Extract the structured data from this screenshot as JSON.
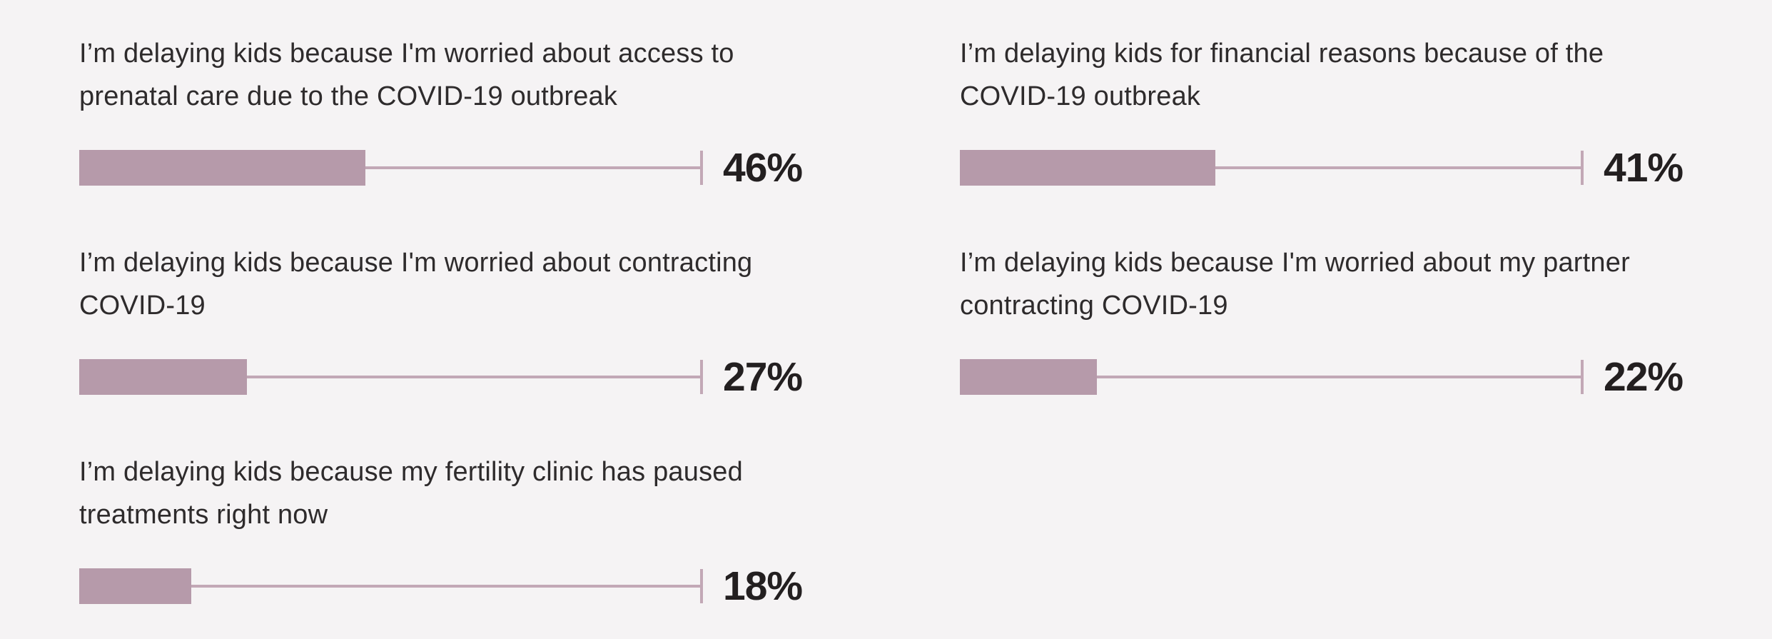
{
  "page": {
    "background_color": "#f5f3f4",
    "bar_fill_color": "#b69aaa",
    "track_line_color": "#c2a8b6",
    "label_color": "#2e2b2c",
    "value_color": "#231f20"
  },
  "chart_data": {
    "type": "bar",
    "orientation": "horizontal",
    "unit": "percent",
    "xlim": [
      0,
      100
    ],
    "grid": false,
    "legend": false,
    "layout": "two-column, end tick marks the 100% track end, bold value label right of tick",
    "categories": [
      "I’m delaying kids because I'm worried about access to prenatal care due to the COVID-19 outbreak",
      "I’m delaying kids for financial reasons because of the COVID-19 outbreak",
      "I’m delaying kids because I'm worried about contracting COVID-19",
      "I’m delaying kids because I'm worried about my partner contracting COVID-19",
      "I’m delaying kids because my fertility clinic has paused treatments right now"
    ],
    "values": [
      46,
      41,
      27,
      22,
      18
    ],
    "items": [
      {
        "lines": [
          "I’m delaying kids because I'm worried about access to",
          "prenatal care due to the COVID-19 outbreak"
        ],
        "value": 46,
        "value_label": "46%"
      },
      {
        "lines": [
          "I’m delaying kids for financial reasons because of the",
          "COVID-19 outbreak"
        ],
        "value": 41,
        "value_label": "41%"
      },
      {
        "lines": [
          "I’m delaying kids because I'm worried about contracting",
          "COVID-19"
        ],
        "value": 27,
        "value_label": "27%"
      },
      {
        "lines": [
          "I’m delaying kids because I'm worried about my partner",
          "contracting COVID-19"
        ],
        "value": 22,
        "value_label": "22%"
      },
      {
        "lines": [
          "I’m delaying kids because my fertility clinic has paused",
          "treatments right now"
        ],
        "value": 18,
        "value_label": "18%"
      }
    ]
  }
}
